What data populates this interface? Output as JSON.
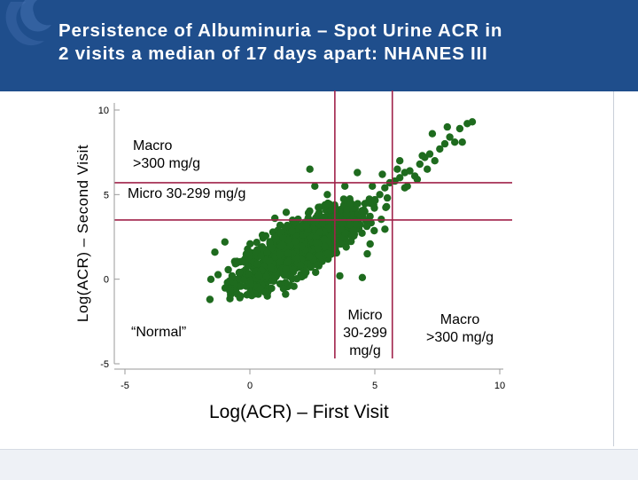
{
  "slide": {
    "title_line1": "Persistence of Albuminuria – Spot Urine ACR in",
    "title_line2": "2 visits a median of 17 days apart: NHANES III",
    "header_color": "#1f4e8c"
  },
  "chart_data": {
    "type": "scatter",
    "title": "Persistence of Albuminuria – Spot Urine ACR in 2 visits a median of 17 days apart: NHANES III",
    "xlabel": "Log(ACR) – First Visit",
    "ylabel": "Log(ACR) – Second Visit",
    "xlim": [
      -5,
      10
    ],
    "ylim": [
      -5,
      10
    ],
    "x_ticks": [
      -5,
      0,
      5,
      10
    ],
    "y_ticks": [
      -5,
      0,
      5,
      10
    ],
    "x_tick_labels": [
      "-5",
      "0",
      "5",
      "10"
    ],
    "y_tick_labels": [
      "-5",
      "0",
      "5",
      "10"
    ],
    "grid": false,
    "point_color": "#1e6b1e",
    "threshold_color": "#a0224a",
    "thresholds": {
      "x": [
        3.4,
        5.7
      ],
      "y": [
        3.5,
        5.7
      ]
    },
    "region_labels": {
      "macro_y": "Macro\n>300 mg/g",
      "micro_y": "Micro 30-299 mg/g",
      "normal": "“Normal”",
      "micro_x": "Micro\n30-299\nmg/g",
      "macro_x": "Macro\n>300 mg/g"
    },
    "points": {
      "description": "Cloud of ~1200 points concentrated around x≈2.0, y≈1.9 (correlation ≈0.78, sd ≈1.25), plus a sparse diagonal tail up to (8.9, 9.3)",
      "core": {
        "n": 1200,
        "mean_x": 2.0,
        "mean_y": 1.9,
        "sd_x": 1.25,
        "sd_y": 1.2,
        "correlation": 0.78,
        "x_range": [
          -1.6,
          5.8
        ],
        "y_range": [
          -1.2,
          5.0
        ]
      },
      "tail": [
        [
          4.6,
          4.0
        ],
        [
          4.8,
          4.5
        ],
        [
          5.0,
          4.7
        ],
        [
          5.2,
          5.0
        ],
        [
          5.4,
          5.4
        ],
        [
          5.6,
          5.7
        ],
        [
          5.8,
          5.8
        ],
        [
          6.0,
          6.0
        ],
        [
          6.2,
          6.3
        ],
        [
          6.4,
          6.4
        ],
        [
          6.6,
          6.1
        ],
        [
          6.8,
          6.8
        ],
        [
          7.0,
          7.2
        ],
        [
          7.2,
          7.4
        ],
        [
          7.4,
          7.0
        ],
        [
          7.6,
          7.7
        ],
        [
          7.8,
          8.0
        ],
        [
          8.0,
          8.4
        ],
        [
          8.2,
          8.1
        ],
        [
          8.4,
          8.9
        ],
        [
          8.5,
          8.1
        ],
        [
          8.7,
          9.2
        ],
        [
          8.9,
          9.3
        ],
        [
          7.9,
          9.0
        ],
        [
          7.3,
          8.6
        ],
        [
          6.9,
          7.3
        ],
        [
          6.3,
          5.5
        ],
        [
          5.9,
          6.5
        ],
        [
          5.3,
          6.2
        ],
        [
          4.9,
          5.5
        ],
        [
          4.3,
          6.3
        ],
        [
          3.8,
          5.5
        ],
        [
          2.4,
          6.5
        ],
        [
          2.6,
          5.5
        ],
        [
          3.1,
          5.0
        ],
        [
          6.2,
          5.4
        ],
        [
          6.7,
          5.9
        ],
        [
          5.5,
          4.8
        ],
        [
          7.1,
          6.5
        ],
        [
          6.0,
          7.0
        ]
      ],
      "outliers": [
        [
          -1.6,
          -1.2
        ],
        [
          -1.4,
          1.6
        ],
        [
          -1.0,
          2.2
        ],
        [
          -0.8,
          -0.7
        ],
        [
          0.0,
          -0.8
        ],
        [
          0.5,
          2.6
        ],
        [
          1.0,
          3.6
        ],
        [
          0.7,
          -1.0
        ],
        [
          4.5,
          0.1
        ],
        [
          4.7,
          1.5
        ],
        [
          3.6,
          0.2
        ],
        [
          -0.4,
          -1.1
        ]
      ]
    }
  }
}
